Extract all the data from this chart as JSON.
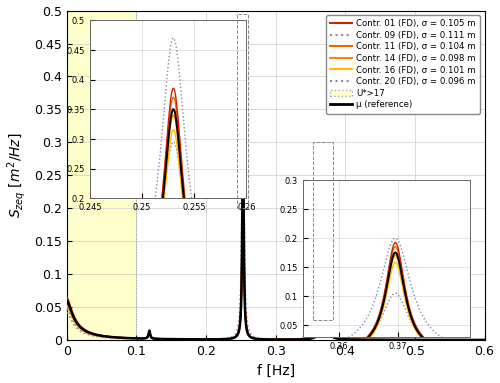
{
  "title": "",
  "xlabel": "f [Hz]",
  "ylabel": "$S_{zeq}\\ [m^2/Hz]$",
  "xlim": [
    0,
    0.6
  ],
  "ylim": [
    0,
    0.5
  ],
  "background_color": "#ffffff",
  "highlight_region": [
    0,
    0.1
  ],
  "highlight_color": "#ffffcc",
  "series": {
    "contr01": {
      "label": "Contr. 01 (FD), σ = 0.105 m",
      "color": "#cc2200",
      "ls": "solid",
      "lw": 1.2
    },
    "contr09": {
      "label": "Contr. 09 (FD), σ = 0.111 m",
      "color": "#8888aa",
      "ls": "dotted",
      "lw": 1.2
    },
    "contr11": {
      "label": "Contr. 11 (FD), σ = 0.104 m",
      "color": "#ee6600",
      "ls": "solid",
      "lw": 1.2
    },
    "contr14": {
      "label": "Contr. 14 (FD), σ = 0.098 m",
      "color": "#ff8800",
      "ls": "solid",
      "lw": 1.2
    },
    "contr16": {
      "label": "Contr. 16 (FD), σ = 0.101 m",
      "color": "#ffbb00",
      "ls": "solid",
      "lw": 1.2
    },
    "contr20": {
      "label": "Contr. 20 (FD), σ = 0.096 m",
      "color": "#8888aa",
      "ls": "dotted",
      "lw": 1.2
    },
    "ustar": {
      "label": "U*>17",
      "color": "#ffffcc",
      "ls": "solid",
      "lw": 0
    },
    "mu": {
      "label": "μ (reference)",
      "color": "#000000",
      "ls": "solid",
      "lw": 1.8
    }
  }
}
